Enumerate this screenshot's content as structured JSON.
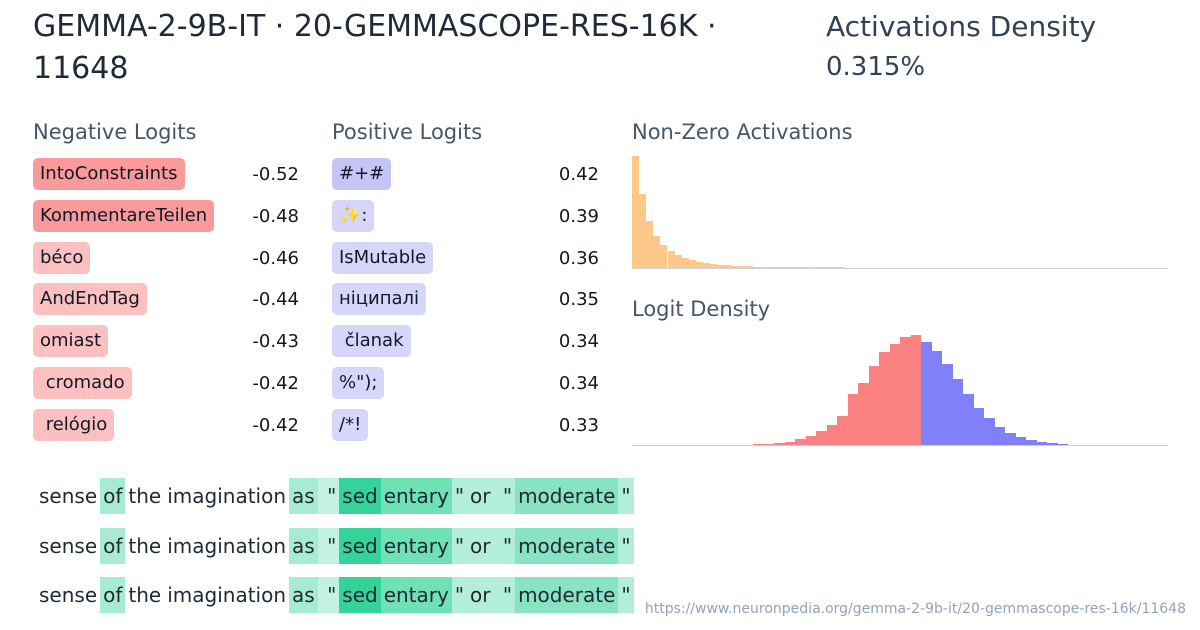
{
  "header": {
    "title": "GEMMA-2-9B-IT · 20-GEMMASCOPE-RES-16K · 11648",
    "density_label": "Activations Density",
    "density_value": "0.315%"
  },
  "negative_logits": {
    "title": "Negative Logits",
    "rows": [
      {
        "token": "IntoConstraints",
        "value": -0.52,
        "color": "#fb9a9a"
      },
      {
        "token": "KommentareTeilen",
        "value": -0.48,
        "color": "#fb9a9a"
      },
      {
        "token": "béco",
        "value": -0.46,
        "color": "#fcc0c0"
      },
      {
        "token": "AndEndTag",
        "value": -0.44,
        "color": "#fcc0c0"
      },
      {
        "token": "omiast",
        "value": -0.43,
        "color": "#fcc0c0"
      },
      {
        "token": " cromado",
        "value": -0.42,
        "color": "#fcc0c0"
      },
      {
        "token": " relógio",
        "value": -0.42,
        "color": "#fcc0c0"
      }
    ]
  },
  "positive_logits": {
    "title": "Positive Logits",
    "rows": [
      {
        "token": "#+#",
        "value": 0.42,
        "color": "#c4c4f7"
      },
      {
        "token": "✨:",
        "value": 0.39,
        "color": "#d6d6fa"
      },
      {
        "token": "IsMutable",
        "value": 0.36,
        "color": "#d6d6fa"
      },
      {
        "token": "ніципалі",
        "value": 0.35,
        "color": "#d6d6fa"
      },
      {
        "token": " članak",
        "value": 0.34,
        "color": "#d6d6fa"
      },
      {
        "token": "%\");",
        "value": 0.34,
        "color": "#d6d6fa"
      },
      {
        "token": "/*!",
        "value": 0.33,
        "color": "#d6d6fa"
      }
    ]
  },
  "activations": {
    "title": "Non-Zero Activations",
    "color": "#fdc98a",
    "values": [
      110,
      73,
      46,
      31,
      23,
      17,
      13,
      10,
      8,
      6,
      5,
      4,
      3,
      3,
      2,
      2,
      2,
      1,
      1,
      1,
      1,
      1,
      1,
      1,
      1,
      1,
      1,
      1,
      1,
      1
    ]
  },
  "logit_density": {
    "title": "Logit Density",
    "series": [
      {
        "color": "#fb8080",
        "values": [
          1,
          1,
          2,
          3,
          6,
          9,
          14,
          20,
          30,
          52,
          63,
          80,
          95,
          103,
          110,
          112
        ]
      },
      {
        "color": "#8080fb",
        "values": [
          105,
          96,
          82,
          67,
          52,
          38,
          27,
          18,
          12,
          8,
          5,
          3,
          2,
          1
        ]
      }
    ]
  },
  "examples": [
    {
      "tokens": [
        {
          "text": "sense",
          "color": "#ffffff"
        },
        {
          "text": "of",
          "color": "#a7ebd3"
        },
        {
          "text": "the",
          "color": "#ffffff"
        },
        {
          "text": "imagination",
          "color": "#ffffff"
        },
        {
          "text": "as",
          "color": "#a7ebd3"
        },
        {
          "text": " \"",
          "color": "#c3f2e2"
        },
        {
          "text": "sed",
          "color": "#34d399"
        },
        {
          "text": "entary",
          "color": "#6ee2b4"
        },
        {
          "text": "\"",
          "color": "#b2eed9"
        },
        {
          "text": "or",
          "color": "#b2eed9"
        },
        {
          "text": " \"",
          "color": "#b2eed9"
        },
        {
          "text": "moderate",
          "color": "#88e3c2"
        },
        {
          "text": "\"",
          "color": "#b2eed9"
        }
      ]
    },
    {
      "tokens": [
        {
          "text": "sense",
          "color": "#ffffff"
        },
        {
          "text": "of",
          "color": "#a7ebd3"
        },
        {
          "text": "the",
          "color": "#ffffff"
        },
        {
          "text": "imagination",
          "color": "#ffffff"
        },
        {
          "text": "as",
          "color": "#a7ebd3"
        },
        {
          "text": " \"",
          "color": "#c3f2e2"
        },
        {
          "text": "sed",
          "color": "#34d399"
        },
        {
          "text": "entary",
          "color": "#6ee2b4"
        },
        {
          "text": "\"",
          "color": "#b2eed9"
        },
        {
          "text": "or",
          "color": "#b2eed9"
        },
        {
          "text": " \"",
          "color": "#b2eed9"
        },
        {
          "text": "moderate",
          "color": "#88e3c2"
        },
        {
          "text": "\"",
          "color": "#b2eed9"
        }
      ]
    },
    {
      "tokens": [
        {
          "text": "sense",
          "color": "#ffffff"
        },
        {
          "text": "of",
          "color": "#a7ebd3"
        },
        {
          "text": "the",
          "color": "#ffffff"
        },
        {
          "text": "imagination",
          "color": "#ffffff"
        },
        {
          "text": "as",
          "color": "#a7ebd3"
        },
        {
          "text": " \"",
          "color": "#c3f2e2"
        },
        {
          "text": "sed",
          "color": "#34d399"
        },
        {
          "text": "entary",
          "color": "#6ee2b4"
        },
        {
          "text": "\"",
          "color": "#b2eed9"
        },
        {
          "text": "or",
          "color": "#b2eed9"
        },
        {
          "text": " \"",
          "color": "#b2eed9"
        },
        {
          "text": "moderate",
          "color": "#88e3c2"
        },
        {
          "text": "\"",
          "color": "#b2eed9"
        }
      ]
    }
  ],
  "url": "https://www.neuronpedia.org/gemma-2-9b-it/20-gemmascope-res-16k/11648"
}
